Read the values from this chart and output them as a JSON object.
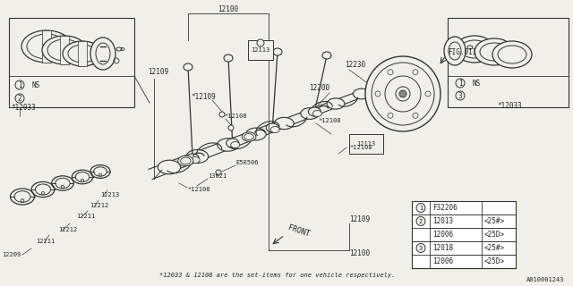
{
  "bg_color": "#f0f0e8",
  "line_color": "#333333",
  "footer_note": "*12033 & 12108 are the set-items for one vehicle respectively.",
  "doc_id": "A010001243",
  "table_rows": [
    [
      "1",
      "F32206",
      ""
    ],
    [
      "2",
      "12013",
      "<25#>"
    ],
    [
      "",
      "12006",
      "<25D>"
    ],
    [
      "3",
      "12018",
      "<25#>"
    ],
    [
      "",
      "12006",
      "<25D>"
    ]
  ]
}
